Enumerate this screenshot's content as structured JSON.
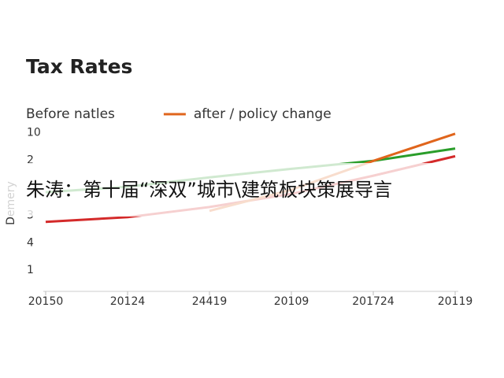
{
  "chart_data": {
    "type": "line",
    "title": "Tax Rates",
    "ylabel": "Demery",
    "categories": [
      "20150",
      "20124",
      "24419",
      "20109",
      "201724",
      "20119"
    ],
    "y_categories": [
      "1",
      "4",
      "3",
      null,
      "2",
      "10"
    ],
    "ylim": [
      -0.77,
      5.25
    ],
    "series": [
      {
        "color": "#d42a2a",
        "values": [
          1.76,
          1.93,
          2.3,
          2.78,
          3.44,
          4.15
        ],
        "legend_marker": false
      },
      {
        "name": "Before natles",
        "color": "#2a9d2a",
        "values": [
          2.84,
          3.04,
          3.38,
          3.69,
          3.98,
          4.43
        ],
        "legend_marker": false
      },
      {
        "name": "after / policy change",
        "color": "#e0651c",
        "values": [
          null,
          null,
          2.16,
          2.93,
          3.98,
          4.97
        ],
        "legend_marker": true
      }
    ],
    "grid": false
  },
  "banner": {
    "text": "朱涛：第十届“深双”城市\\建筑板块策展导言"
  }
}
